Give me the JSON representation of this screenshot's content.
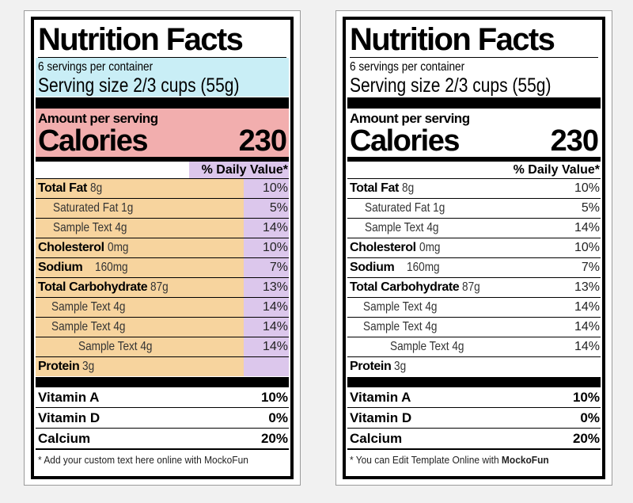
{
  "labels": [
    {
      "title": "Nutrition Facts",
      "servings": "6 servings per container",
      "serving_size": "Serving size 2/3 cups (55g)",
      "amount_per_serving": "Amount per serving",
      "calories_label": "Calories",
      "calories_value": "230",
      "dv_header": "% Daily Value*",
      "nutrients": [
        {
          "name": "Total Fat",
          "amount": "8g",
          "dv": "10%"
        },
        {
          "name": "Saturated Fat 1g",
          "amount": "",
          "dv": "5%"
        },
        {
          "name": "Sample Text 4g",
          "amount": "",
          "dv": "14%"
        },
        {
          "name": "Cholesterol",
          "amount": "0mg",
          "dv": "10%"
        },
        {
          "name": "Sodium",
          "amount": "160mg",
          "dv": "7%"
        },
        {
          "name": "Total Carbohydrate",
          "amount": "87g",
          "dv": "13%"
        },
        {
          "name": "Sample Text 4g",
          "amount": "",
          "dv": "14%"
        },
        {
          "name": "Sample Text 4g",
          "amount": "",
          "dv": "14%"
        },
        {
          "name": "Sample Text 4g",
          "amount": "",
          "dv": "14%"
        },
        {
          "name": "Protein",
          "amount": "3g",
          "dv": ""
        }
      ],
      "vitamins": [
        {
          "name": "Vitamin A",
          "dv": "10%"
        },
        {
          "name": "Vitamin D",
          "dv": "0%"
        },
        {
          "name": "Calcium",
          "dv": "20%"
        }
      ],
      "footnote_text": "* Add your custom text here online with MockoFun",
      "footnote_brand": ""
    },
    {
      "title": "Nutrition Facts",
      "servings": "6 servings per container",
      "serving_size": "Serving size 2/3 cups (55g)",
      "amount_per_serving": "Amount per serving",
      "calories_label": "Calories",
      "calories_value": "230",
      "dv_header": "% Daily Value*",
      "nutrients": [
        {
          "name": "Total Fat",
          "amount": "8g",
          "dv": "10%"
        },
        {
          "name": "Saturated Fat 1g",
          "amount": "",
          "dv": "5%"
        },
        {
          "name": "Sample Text 4g",
          "amount": "",
          "dv": "14%"
        },
        {
          "name": "Cholesterol",
          "amount": "0mg",
          "dv": "10%"
        },
        {
          "name": "Sodium",
          "amount": "160mg",
          "dv": "7%"
        },
        {
          "name": "Total Carbohydrate",
          "amount": "87g",
          "dv": "13%"
        },
        {
          "name": "Sample Text 4g",
          "amount": "",
          "dv": "14%"
        },
        {
          "name": "Sample Text 4g",
          "amount": "",
          "dv": "14%"
        },
        {
          "name": "Sample Text 4g",
          "amount": "",
          "dv": "14%"
        },
        {
          "name": "Protein",
          "amount": "3g",
          "dv": ""
        }
      ],
      "vitamins": [
        {
          "name": "Vitamin A",
          "dv": "10%"
        },
        {
          "name": "Vitamin D",
          "dv": "0%"
        },
        {
          "name": "Calcium",
          "dv": "20%"
        }
      ],
      "footnote_text": "* You can Edit Template Online with ",
      "footnote_brand": "MockoFun"
    }
  ],
  "colors": {
    "serving_highlight": "#c9eef6",
    "calories_highlight": "#f2aeae",
    "nutrient_highlight": "#f7d49e",
    "daily_value_highlight": "#dcc7ec"
  }
}
